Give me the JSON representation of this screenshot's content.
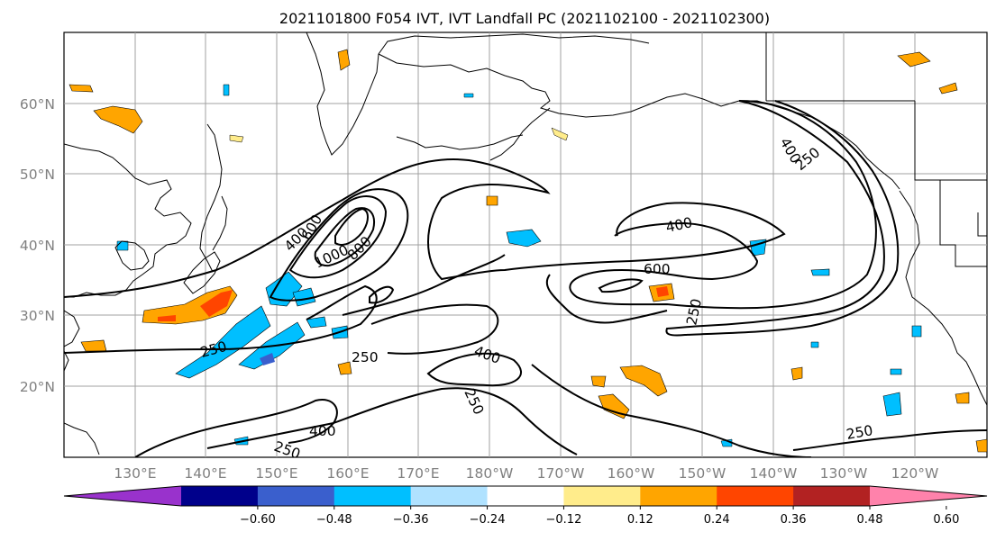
{
  "title": "2021101800 F054 IVT, IVT Landfall PC (2021102100 - 2021102300)",
  "map": {
    "lon_ticks": [
      "130°E",
      "140°E",
      "150°E",
      "160°E",
      "170°E",
      "180°W",
      "170°W",
      "160°W",
      "150°W",
      "140°W",
      "130°W",
      "120°W"
    ],
    "lat_ticks": [
      "20°N",
      "30°N",
      "40°N",
      "50°N",
      "60°N"
    ],
    "contour_labels": [
      "400",
      "600",
      "1000",
      "800",
      "400",
      "600",
      "250",
      "400",
      "250",
      "400",
      "250",
      "250",
      "400",
      "250",
      "250"
    ]
  },
  "colorbar": {
    "colors": [
      "#9932cc",
      "#00008b",
      "#3a5fcd",
      "#00bfff",
      "#b0e2ff",
      "#ffffff",
      "#ffec8b",
      "#ffa500",
      "#ff4500",
      "#b22222",
      "#ff82ab"
    ],
    "tick_labels": [
      "−0.60",
      "−0.48",
      "−0.36",
      "−0.24",
      "−0.12",
      "0.12",
      "0.24",
      "0.36",
      "0.48",
      "0.60"
    ]
  },
  "colors": {
    "contour": "#000000",
    "grid": "#a0a0a0",
    "coast": "#000000"
  }
}
